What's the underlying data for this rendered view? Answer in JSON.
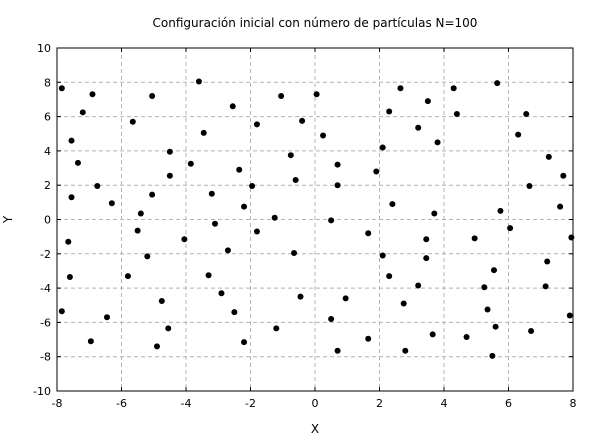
{
  "chart_data": {
    "type": "scatter",
    "title": "Configuración inicial con número de partículas N=100",
    "xlabel": "X",
    "ylabel": "Y",
    "xlim": [
      -8,
      8
    ],
    "ylim": [
      -10,
      10
    ],
    "xticks": [
      -8,
      -6,
      -4,
      -2,
      0,
      2,
      4,
      6,
      8
    ],
    "yticks": [
      -10,
      -8,
      -6,
      -4,
      -2,
      0,
      2,
      4,
      6,
      8,
      10
    ],
    "grid": true,
    "marker_color": "#000000",
    "points": [
      [
        -7.85,
        7.65
      ],
      [
        -6.9,
        7.3
      ],
      [
        -5.05,
        7.2
      ],
      [
        -3.6,
        8.05
      ],
      [
        -2.55,
        6.6
      ],
      [
        -1.05,
        7.2
      ],
      [
        0.05,
        7.3
      ],
      [
        2.65,
        7.65
      ],
      [
        4.3,
        7.65
      ],
      [
        5.65,
        7.95
      ],
      [
        -7.2,
        6.25
      ],
      [
        -5.65,
        5.7
      ],
      [
        -3.45,
        5.05
      ],
      [
        -1.8,
        5.55
      ],
      [
        -0.4,
        5.75
      ],
      [
        2.3,
        6.3
      ],
      [
        3.5,
        6.9
      ],
      [
        4.4,
        6.15
      ],
      [
        6.55,
        6.15
      ],
      [
        -7.55,
        4.6
      ],
      [
        -4.5,
        3.95
      ],
      [
        -0.75,
        3.75
      ],
      [
        0.25,
        4.9
      ],
      [
        2.1,
        4.2
      ],
      [
        3.2,
        5.35
      ],
      [
        3.8,
        4.5
      ],
      [
        6.3,
        4.95
      ],
      [
        -7.35,
        3.3
      ],
      [
        -3.85,
        3.25
      ],
      [
        -2.35,
        2.9
      ],
      [
        -0.6,
        2.3
      ],
      [
        0.7,
        3.2
      ],
      [
        1.9,
        2.8
      ],
      [
        7.25,
        3.65
      ],
      [
        -6.75,
        1.95
      ],
      [
        -4.5,
        2.55
      ],
      [
        -3.2,
        1.5
      ],
      [
        -1.95,
        1.95
      ],
      [
        0.7,
        2.0
      ],
      [
        6.65,
        1.95
      ],
      [
        7.7,
        2.55
      ],
      [
        -7.55,
        1.3
      ],
      [
        -6.3,
        0.95
      ],
      [
        -5.05,
        1.45
      ],
      [
        -2.2,
        0.75
      ],
      [
        2.4,
        0.9
      ],
      [
        5.75,
        0.5
      ],
      [
        7.6,
        0.75
      ],
      [
        -5.4,
        0.35
      ],
      [
        -1.25,
        0.1
      ],
      [
        0.5,
        -0.05
      ],
      [
        3.7,
        0.35
      ],
      [
        -5.5,
        -0.65
      ],
      [
        -3.1,
        -0.25
      ],
      [
        -1.8,
        -0.7
      ],
      [
        1.65,
        -0.8
      ],
      [
        6.05,
        -0.5
      ],
      [
        -7.65,
        -1.3
      ],
      [
        -4.05,
        -1.15
      ],
      [
        3.45,
        -1.15
      ],
      [
        4.95,
        -1.1
      ],
      [
        7.95,
        -1.05
      ],
      [
        -5.2,
        -2.15
      ],
      [
        -2.7,
        -1.8
      ],
      [
        -0.65,
        -1.95
      ],
      [
        2.1,
        -2.1
      ],
      [
        3.45,
        -2.25
      ],
      [
        7.2,
        -2.45
      ],
      [
        -7.6,
        -3.35
      ],
      [
        -5.8,
        -3.3
      ],
      [
        -3.3,
        -3.25
      ],
      [
        2.3,
        -3.3
      ],
      [
        5.55,
        -2.95
      ],
      [
        -2.9,
        -4.3
      ],
      [
        -4.75,
        -4.75
      ],
      [
        -0.45,
        -4.5
      ],
      [
        0.95,
        -4.6
      ],
      [
        3.2,
        -3.85
      ],
      [
        5.25,
        -3.95
      ],
      [
        7.15,
        -3.9
      ],
      [
        -7.85,
        -5.35
      ],
      [
        -6.45,
        -5.7
      ],
      [
        -4.55,
        -6.35
      ],
      [
        -2.5,
        -5.4
      ],
      [
        0.5,
        -5.8
      ],
      [
        2.75,
        -4.9
      ],
      [
        5.35,
        -5.25
      ],
      [
        7.9,
        -5.6
      ],
      [
        -1.2,
        -6.35
      ],
      [
        3.65,
        -6.7
      ],
      [
        5.6,
        -6.25
      ],
      [
        6.7,
        -6.5
      ],
      [
        -6.95,
        -7.1
      ],
      [
        -4.9,
        -7.4
      ],
      [
        -2.2,
        -7.15
      ],
      [
        0.7,
        -7.65
      ],
      [
        1.65,
        -6.95
      ],
      [
        2.8,
        -7.65
      ],
      [
        4.7,
        -6.85
      ],
      [
        5.5,
        -7.95
      ]
    ]
  }
}
